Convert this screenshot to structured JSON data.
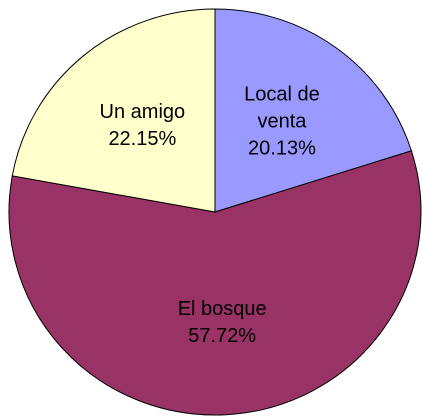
{
  "chart_data": {
    "type": "pie",
    "categories": [
      "Local de venta",
      "El bosque",
      "Un amigo"
    ],
    "values": [
      20.13,
      57.72,
      22.15
    ],
    "value_labels": [
      "20.13%",
      "57.72%",
      "22.15%"
    ],
    "colors": [
      "#9999ff",
      "#993366",
      "#ffffcc"
    ]
  }
}
